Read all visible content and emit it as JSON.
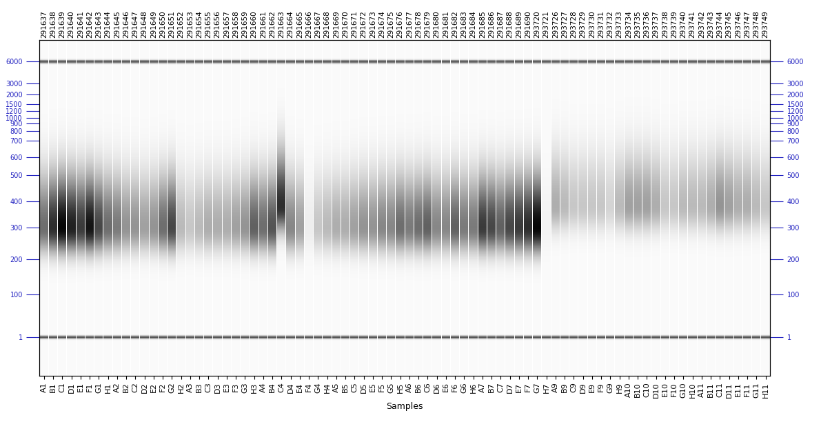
{
  "chart_data": {
    "type": "gel",
    "xlabel": "Samples",
    "categories": [
      "A1",
      "B1",
      "C1",
      "D1",
      "E1",
      "F1",
      "G1",
      "H1",
      "A2",
      "B2",
      "C2",
      "D2",
      "E2",
      "F2",
      "G2",
      "H2",
      "A3",
      "B3",
      "C3",
      "D3",
      "E3",
      "F3",
      "G3",
      "H3",
      "A4",
      "B4",
      "C4",
      "D4",
      "E4",
      "F4",
      "G4",
      "H4",
      "A5",
      "B5",
      "C5",
      "D5",
      "E5",
      "F5",
      "G5",
      "H5",
      "A6",
      "B6",
      "C6",
      "D6",
      "E6",
      "F6",
      "G6",
      "H6",
      "A7",
      "B7",
      "C7",
      "D7",
      "E7",
      "F7",
      "G7",
      "H7",
      "A9",
      "B9",
      "C9",
      "D9",
      "E9",
      "F9",
      "G9",
      "H9",
      "A10",
      "B10",
      "C10",
      "D10",
      "E10",
      "F10",
      "G10",
      "H10",
      "A11",
      "B11",
      "C11",
      "D11",
      "E11",
      "F11",
      "G11",
      "H11"
    ],
    "samples": [
      "291637",
      "291638",
      "291639",
      "291640",
      "291641",
      "291642",
      "291643",
      "291644",
      "291645",
      "291646",
      "291647",
      "291648",
      "291649",
      "291650",
      "291651",
      "291652",
      "291653",
      "291654",
      "291655",
      "291656",
      "291657",
      "291658",
      "291659",
      "291660",
      "291661",
      "291662",
      "291663",
      "291664",
      "291665",
      "291666",
      "291667",
      "291668",
      "291669",
      "291670",
      "291671",
      "291672",
      "291673",
      "291674",
      "291675",
      "291676",
      "291677",
      "291678",
      "291679",
      "291680",
      "291681",
      "291682",
      "291683",
      "291684",
      "291685",
      "291686",
      "291687",
      "291688",
      "291689",
      "291690",
      "293720",
      "293721",
      "293726",
      "293727",
      "293728",
      "293729",
      "293730",
      "293731",
      "293732",
      "293733",
      "293734",
      "293735",
      "293736",
      "293737",
      "293738",
      "293739",
      "293740",
      "293741",
      "293742",
      "293743",
      "293744",
      "293745",
      "293746",
      "293747",
      "293748",
      "293749"
    ],
    "peak": [
      300,
      300,
      300,
      300,
      300,
      300,
      300,
      300,
      300,
      300,
      300,
      300,
      300,
      300,
      300,
      300,
      300,
      300,
      300,
      300,
      300,
      300,
      300,
      300,
      300,
      300,
      380,
      300,
      300,
      300,
      300,
      300,
      300,
      300,
      300,
      300,
      300,
      300,
      300,
      300,
      300,
      300,
      300,
      300,
      300,
      300,
      300,
      300,
      300,
      300,
      300,
      300,
      300,
      300,
      300,
      300,
      380,
      380,
      380,
      380,
      380,
      380,
      380,
      380,
      380,
      380,
      380,
      380,
      380,
      380,
      380,
      380,
      380,
      380,
      380,
      380,
      380,
      380,
      380,
      380
    ],
    "intensity": [
      0.55,
      0.8,
      0.95,
      0.85,
      0.75,
      0.9,
      0.7,
      0.55,
      0.5,
      0.4,
      0.4,
      0.35,
      0.4,
      0.55,
      0.7,
      0.25,
      0.2,
      0.25,
      0.3,
      0.3,
      0.3,
      0.35,
      0.4,
      0.6,
      0.55,
      0.65,
      0.8,
      0.45,
      0.35,
      0.05,
      0.2,
      0.25,
      0.3,
      0.3,
      0.35,
      0.4,
      0.4,
      0.45,
      0.45,
      0.55,
      0.5,
      0.55,
      0.6,
      0.45,
      0.45,
      0.6,
      0.5,
      0.5,
      0.75,
      0.7,
      0.6,
      0.7,
      0.75,
      0.8,
      0.95,
      0.03,
      0.3,
      0.25,
      0.2,
      0.2,
      0.2,
      0.2,
      0.15,
      0.25,
      0.35,
      0.35,
      0.35,
      0.3,
      0.2,
      0.2,
      0.25,
      0.25,
      0.25,
      0.3,
      0.4,
      0.35,
      0.3,
      0.3,
      0.25,
      0.2
    ],
    "markers": [
      1,
      6000
    ],
    "ylim": [
      0.016,
      11800
    ],
    "yticks": [
      1,
      100,
      200,
      300,
      400,
      500,
      600,
      700,
      800,
      900,
      1000,
      1200,
      1500,
      2000,
      3000,
      6000
    ],
    "ladder_migration": [
      0,
      0.155,
      0.2825,
      0.3975,
      0.4925,
      0.5875,
      0.6525,
      0.7125,
      0.7475,
      0.775,
      0.795,
      0.82,
      0.845,
      0.88,
      0.92,
      1.0
    ]
  }
}
